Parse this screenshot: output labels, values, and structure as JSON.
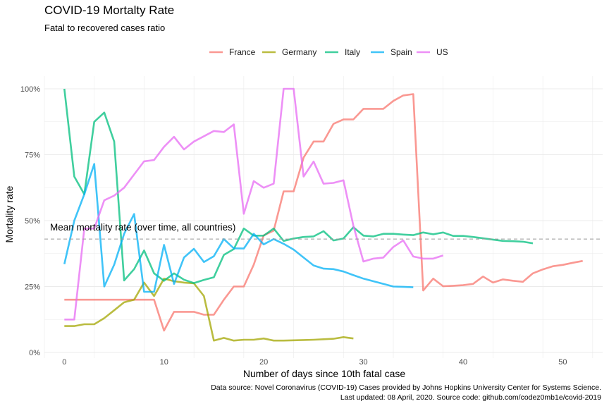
{
  "chart_data": {
    "type": "line",
    "title": "COVID-19 Mortalty Rate",
    "subtitle": "Fatal to recovered cases ratio",
    "xlabel": "Number of days since 10th fatal case",
    "ylabel": "Mortality rate",
    "xlim": [
      -2,
      54
    ],
    "ylim": [
      0,
      1
    ],
    "x_ticks": [
      0,
      10,
      20,
      30,
      40,
      50
    ],
    "x_tick_labels": [
      "0",
      "10",
      "20",
      "30",
      "40",
      "50"
    ],
    "y_ticks": [
      0,
      0.25,
      0.5,
      0.75,
      1
    ],
    "y_tick_labels": [
      "0%",
      "25%",
      "50%",
      "75%",
      "100%"
    ],
    "grid": true,
    "legend_position": "top",
    "mean_line": {
      "value": 0.43,
      "label": "Mean mortality rate (over time, all countries)"
    },
    "caption": [
      "Data source: Novel Coronavirus (COVID-19) Cases provided by Johns Hopkins University Center for Systems Science.",
      "Last updated: 08 April, 2020. Source code: github.com/codez0mb1e/covid-2019"
    ],
    "series": [
      {
        "name": "France",
        "color": "#F8766D",
        "points": [
          [
            0,
            0.2
          ],
          [
            1,
            0.2
          ],
          [
            2,
            0.2
          ],
          [
            3,
            0.2
          ],
          [
            4,
            0.2
          ],
          [
            5,
            0.2
          ],
          [
            6,
            0.2
          ],
          [
            7,
            0.2
          ],
          [
            8,
            0.2
          ],
          [
            9,
            0.2
          ],
          [
            10,
            0.083
          ],
          [
            11,
            0.154
          ],
          [
            12,
            0.154
          ],
          [
            13,
            0.154
          ],
          [
            14,
            0.143
          ],
          [
            15,
            0.143
          ],
          [
            16,
            0.2
          ],
          [
            17,
            0.25
          ],
          [
            18,
            0.25
          ],
          [
            19,
            0.333
          ],
          [
            20,
            0.444
          ],
          [
            21,
            0.462
          ],
          [
            22,
            0.611
          ],
          [
            23,
            0.611
          ],
          [
            24,
            0.739
          ],
          [
            25,
            0.8
          ],
          [
            26,
            0.8
          ],
          [
            27,
            0.867
          ],
          [
            28,
            0.884
          ],
          [
            29,
            0.884
          ],
          [
            30,
            0.924
          ],
          [
            31,
            0.924
          ],
          [
            32,
            0.924
          ],
          [
            33,
            0.954
          ],
          [
            34,
            0.975
          ],
          [
            35,
            0.98
          ],
          [
            36,
            0.235
          ],
          [
            37,
            0.28
          ],
          [
            38,
            0.251
          ],
          [
            39,
            0.253
          ],
          [
            40,
            0.255
          ],
          [
            41,
            0.26
          ],
          [
            42,
            0.288
          ],
          [
            43,
            0.265
          ],
          [
            44,
            0.277
          ],
          [
            45,
            0.272
          ],
          [
            46,
            0.268
          ],
          [
            47,
            0.3
          ],
          [
            48,
            0.315
          ],
          [
            49,
            0.327
          ],
          [
            50,
            0.332
          ],
          [
            51,
            0.34
          ],
          [
            52,
            0.347
          ]
        ]
      },
      {
        "name": "Germany",
        "color": "#A3A500",
        "points": [
          [
            0,
            0.1
          ],
          [
            1,
            0.1
          ],
          [
            2,
            0.107
          ],
          [
            3,
            0.107
          ],
          [
            4,
            0.13
          ],
          [
            5,
            0.16
          ],
          [
            6,
            0.19
          ],
          [
            7,
            0.2
          ],
          [
            8,
            0.265
          ],
          [
            9,
            0.214
          ],
          [
            10,
            0.28
          ],
          [
            11,
            0.27
          ],
          [
            12,
            0.265
          ],
          [
            13,
            0.262
          ],
          [
            14,
            0.214
          ],
          [
            15,
            0.045
          ],
          [
            16,
            0.055
          ],
          [
            17,
            0.045
          ],
          [
            18,
            0.048
          ],
          [
            19,
            0.048
          ],
          [
            20,
            0.053
          ],
          [
            21,
            0.045
          ],
          [
            22,
            0.045
          ],
          [
            23,
            0.046
          ],
          [
            24,
            0.047
          ],
          [
            25,
            0.048
          ],
          [
            26,
            0.05
          ],
          [
            27,
            0.052
          ],
          [
            28,
            0.058
          ],
          [
            29,
            0.053
          ]
        ]
      },
      {
        "name": "Italy",
        "color": "#00BF7D",
        "points": [
          [
            0,
            1.0
          ],
          [
            1,
            0.667
          ],
          [
            2,
            0.6
          ],
          [
            3,
            0.875
          ],
          [
            4,
            0.91
          ],
          [
            5,
            0.8
          ],
          [
            6,
            0.273
          ],
          [
            7,
            0.316
          ],
          [
            8,
            0.387
          ],
          [
            9,
            0.3
          ],
          [
            10,
            0.272
          ],
          [
            11,
            0.3
          ],
          [
            12,
            0.276
          ],
          [
            13,
            0.263
          ],
          [
            14,
            0.275
          ],
          [
            15,
            0.285
          ],
          [
            16,
            0.37
          ],
          [
            17,
            0.392
          ],
          [
            18,
            0.47
          ],
          [
            19,
            0.443
          ],
          [
            20,
            0.443
          ],
          [
            21,
            0.47
          ],
          [
            22,
            0.423
          ],
          [
            23,
            0.432
          ],
          [
            24,
            0.438
          ],
          [
            25,
            0.44
          ],
          [
            26,
            0.46
          ],
          [
            27,
            0.425
          ],
          [
            28,
            0.432
          ],
          [
            29,
            0.475
          ],
          [
            30,
            0.443
          ],
          [
            31,
            0.44
          ],
          [
            32,
            0.45
          ],
          [
            33,
            0.45
          ],
          [
            34,
            0.447
          ],
          [
            35,
            0.445
          ],
          [
            36,
            0.455
          ],
          [
            37,
            0.448
          ],
          [
            38,
            0.455
          ],
          [
            39,
            0.442
          ],
          [
            40,
            0.442
          ],
          [
            41,
            0.438
          ],
          [
            42,
            0.433
          ],
          [
            43,
            0.428
          ],
          [
            44,
            0.423
          ],
          [
            45,
            0.422
          ],
          [
            46,
            0.42
          ],
          [
            47,
            0.414
          ]
        ]
      },
      {
        "name": "Spain",
        "color": "#00B0F6",
        "points": [
          [
            0,
            0.335
          ],
          [
            1,
            0.5
          ],
          [
            2,
            0.6
          ],
          [
            3,
            0.715
          ],
          [
            4,
            0.25
          ],
          [
            5,
            0.333
          ],
          [
            6,
            0.45
          ],
          [
            7,
            0.525
          ],
          [
            8,
            0.23
          ],
          [
            9,
            0.23
          ],
          [
            10,
            0.408
          ],
          [
            11,
            0.26
          ],
          [
            12,
            0.36
          ],
          [
            13,
            0.393
          ],
          [
            14,
            0.343
          ],
          [
            15,
            0.365
          ],
          [
            16,
            0.43
          ],
          [
            17,
            0.395
          ],
          [
            18,
            0.394
          ],
          [
            19,
            0.45
          ],
          [
            20,
            0.41
          ],
          [
            21,
            0.43
          ],
          [
            22,
            0.412
          ],
          [
            23,
            0.39
          ],
          [
            24,
            0.36
          ],
          [
            25,
            0.33
          ],
          [
            26,
            0.318
          ],
          [
            27,
            0.316
          ],
          [
            28,
            0.307
          ],
          [
            29,
            0.293
          ],
          [
            30,
            0.28
          ],
          [
            31,
            0.27
          ],
          [
            32,
            0.26
          ],
          [
            33,
            0.25
          ],
          [
            34,
            0.249
          ],
          [
            35,
            0.247
          ]
        ]
      },
      {
        "name": "US",
        "color": "#E76BF3",
        "points": [
          [
            0,
            0.125
          ],
          [
            1,
            0.125
          ],
          [
            2,
            0.47
          ],
          [
            3,
            0.47
          ],
          [
            4,
            0.577
          ],
          [
            5,
            0.595
          ],
          [
            6,
            0.625
          ],
          [
            7,
            0.675
          ],
          [
            8,
            0.725
          ],
          [
            9,
            0.73
          ],
          [
            10,
            0.78
          ],
          [
            11,
            0.818
          ],
          [
            12,
            0.77
          ],
          [
            13,
            0.8
          ],
          [
            14,
            0.82
          ],
          [
            15,
            0.84
          ],
          [
            16,
            0.836
          ],
          [
            17,
            0.865
          ],
          [
            18,
            0.526
          ],
          [
            19,
            0.65
          ],
          [
            20,
            0.625
          ],
          [
            21,
            0.64
          ],
          [
            22,
            1.0
          ],
          [
            23,
            1.0
          ],
          [
            24,
            0.667
          ],
          [
            25,
            0.724
          ],
          [
            26,
            0.64
          ],
          [
            27,
            0.643
          ],
          [
            28,
            0.653
          ],
          [
            29,
            0.48
          ],
          [
            30,
            0.345
          ],
          [
            31,
            0.356
          ],
          [
            32,
            0.36
          ],
          [
            33,
            0.4
          ],
          [
            34,
            0.425
          ],
          [
            35,
            0.364
          ],
          [
            36,
            0.356
          ],
          [
            37,
            0.356
          ],
          [
            38,
            0.368
          ]
        ]
      }
    ]
  }
}
